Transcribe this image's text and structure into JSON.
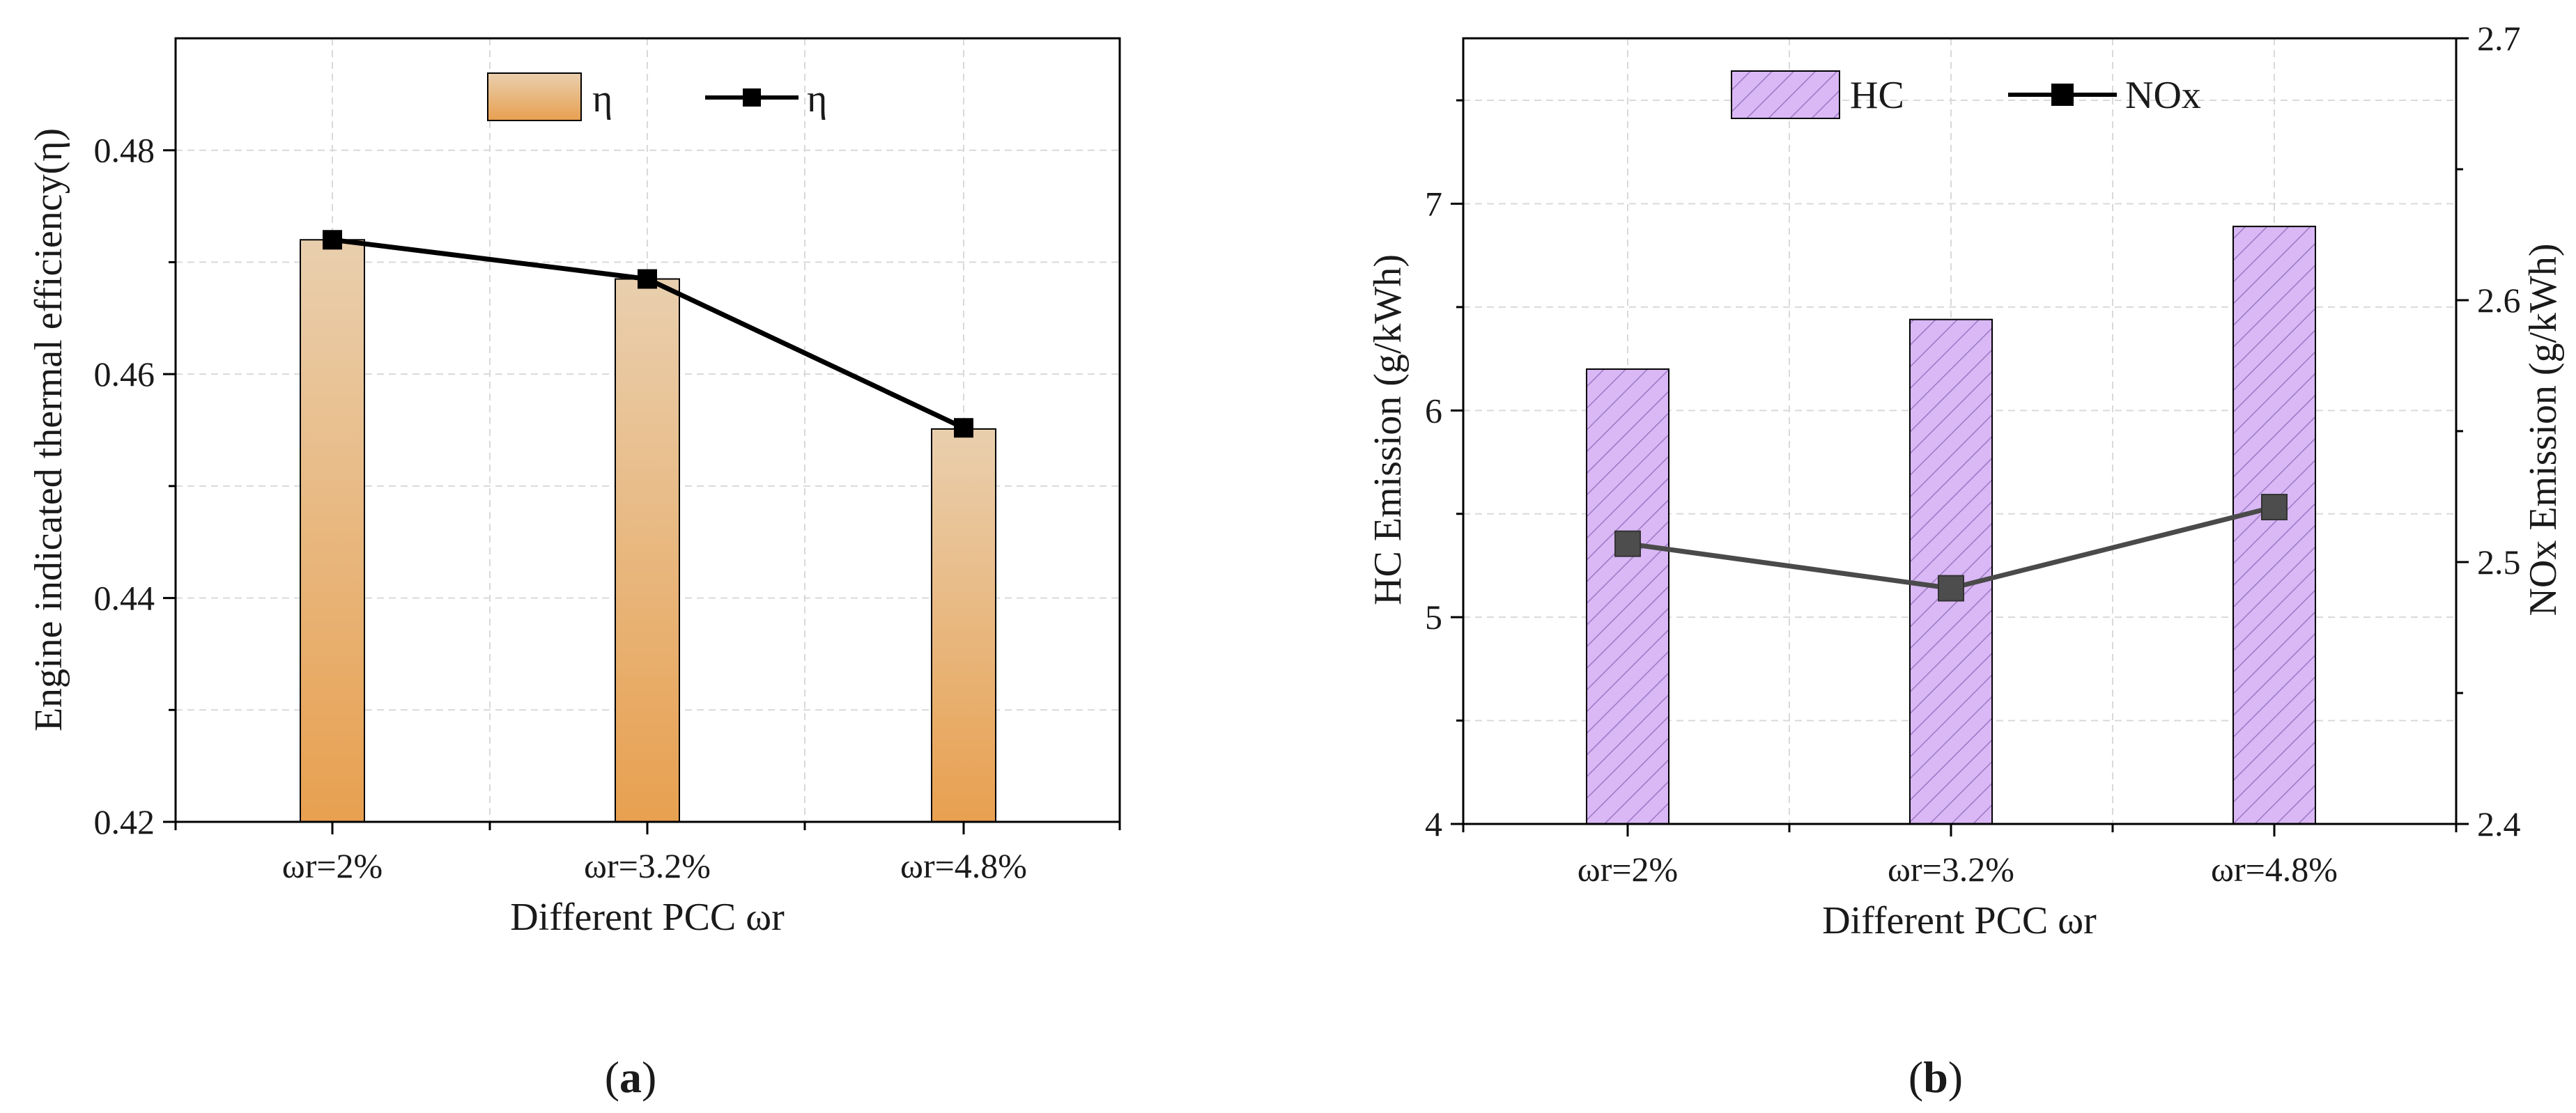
{
  "chart_data": [
    {
      "panel": "a",
      "type": "bar+line",
      "categories": [
        "ωr=2%",
        "ωr=3.2%",
        "ωr=4.8%"
      ],
      "xlabel": "Different PCC ωr",
      "ylabel": "Engine indicated thermal efficiency(η)",
      "ylim": [
        0.42,
        0.49
      ],
      "yticks": [
        "0.42",
        "0.44",
        "0.46",
        "0.48"
      ],
      "series": [
        {
          "name": "η",
          "kind": "bar",
          "values": [
            0.472,
            0.4685,
            0.4551
          ]
        },
        {
          "name": "η",
          "kind": "line",
          "values": [
            0.472,
            0.4685,
            0.4552
          ]
        }
      ],
      "legend": [
        "η",
        "η"
      ],
      "colors": {
        "bar_top": "#E9CFAE",
        "bar_bottom": "#E8A050",
        "line": "#000000"
      }
    },
    {
      "panel": "b",
      "type": "bar+line",
      "categories": [
        "ωr=2%",
        "ωr=3.2%",
        "ωr=4.8%"
      ],
      "xlabel": "Different PCC ωr",
      "ylabel": "HC Emission (g/kWh)",
      "ylabel_right": "NOx Emission (g/kWh)",
      "ylim": [
        4,
        7.8
      ],
      "ylim_right": [
        2.4,
        2.7
      ],
      "yticks": [
        "4",
        "5",
        "6",
        "7"
      ],
      "yticks_right": [
        "2.4",
        "2.5",
        "2.6",
        "2.7"
      ],
      "series": [
        {
          "name": "HC",
          "kind": "bar",
          "axis": "left",
          "values": [
            6.2,
            6.44,
            6.89
          ]
        },
        {
          "name": "NOx",
          "kind": "line",
          "axis": "right",
          "values": [
            2.507,
            2.49,
            2.521
          ]
        }
      ],
      "legend": [
        "HC",
        "NOx"
      ],
      "colors": {
        "bar_fill": "#D9B8F5",
        "bar_hatch": "#9C78C4",
        "line": "#4A4A4A"
      }
    }
  ],
  "captions": {
    "a": "a",
    "b": "b"
  }
}
